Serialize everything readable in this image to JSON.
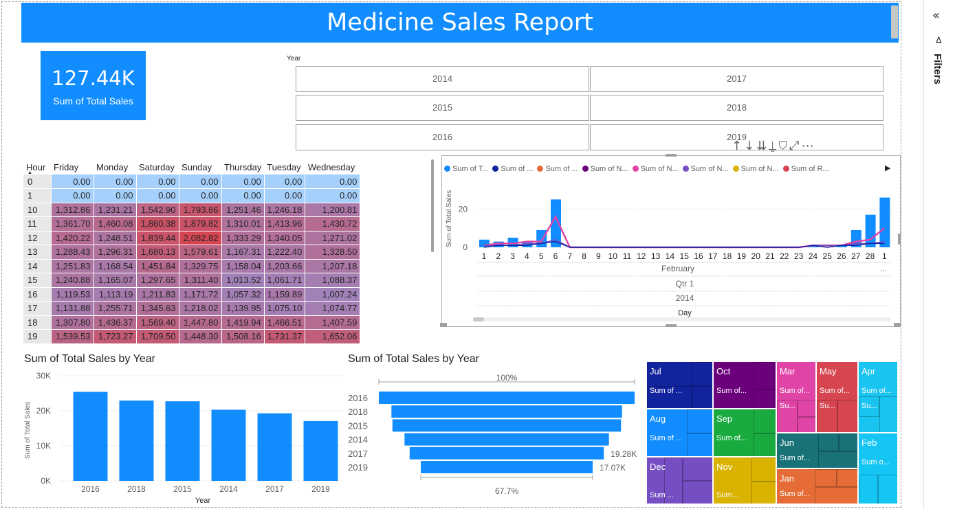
{
  "header": {
    "title": "Medicine Sales Report"
  },
  "card": {
    "value": "127.44K",
    "label": "Sum of Total Sales"
  },
  "slicer": {
    "title": "Year",
    "options": [
      "2014",
      "2017",
      "2015",
      "2018",
      "2016",
      "2019"
    ]
  },
  "matrix": {
    "row_header": "Hour",
    "columns": [
      "Friday",
      "Monday",
      "Saturday",
      "Sunday",
      "Thursday",
      "Tuesday",
      "Wednesday"
    ],
    "rows": [
      {
        "hour": "0",
        "values": [
          "0.00",
          "0.00",
          "0.00",
          "0.00",
          "0.00",
          "0.00",
          "0.00"
        ]
      },
      {
        "hour": "1",
        "values": [
          "0.00",
          "0.00",
          "0.00",
          "0.00",
          "0.00",
          "0.00",
          "0.00"
        ]
      },
      {
        "hour": "10",
        "values": [
          "1,312.86",
          "1,231.21",
          "1,542.90",
          "1,793.86",
          "1,251.46",
          "1,246.18",
          "1,200.81"
        ]
      },
      {
        "hour": "11",
        "values": [
          "1,361.70",
          "1,460.08",
          "1,860.38",
          "1,879.82",
          "1,310.01",
          "1,413.96",
          "1,430.72"
        ]
      },
      {
        "hour": "12",
        "values": [
          "1,420.22",
          "1,248.51",
          "1,839.44",
          "2,082.82",
          "1,333.29",
          "1,340.05",
          "1,271.02"
        ]
      },
      {
        "hour": "13",
        "values": [
          "1,288.43",
          "1,296.31",
          "1,680.13",
          "1,579.61",
          "1,167.31",
          "1,222.40",
          "1,328.50"
        ]
      },
      {
        "hour": "14",
        "values": [
          "1,251.83",
          "1,168.54",
          "1,451.84",
          "1,329.75",
          "1,158.04",
          "1,203.66",
          "1,207.18"
        ]
      },
      {
        "hour": "15",
        "values": [
          "1,240.88",
          "1,165.07",
          "1,297.65",
          "1,311.40",
          "1,013.52",
          "1,061.71",
          "1,088.37"
        ]
      },
      {
        "hour": "16",
        "values": [
          "1,119.53",
          "1,113.19",
          "1,211.83",
          "1,171.72",
          "1,057.32",
          "1,159.89",
          "1,007.24"
        ]
      },
      {
        "hour": "17",
        "values": [
          "1,131.88",
          "1,255.71",
          "1,345.63",
          "1,218.02",
          "1,139.95",
          "1,075.10",
          "1,074.77"
        ]
      },
      {
        "hour": "18",
        "values": [
          "1,307.80",
          "1,436.37",
          "1,569.40",
          "1,447.80",
          "1,419.94",
          "1,466.51",
          "1,407.59"
        ]
      },
      {
        "hour": "19",
        "values": [
          "1,539.53",
          "1,723.27",
          "1,709.50",
          "1,448.30",
          "1,508.16",
          "1,731.37",
          "1,652.06"
        ]
      }
    ]
  },
  "visual_toolbar": {
    "icons": [
      "drill-up-icon",
      "drill-down-icon",
      "expand-all-icon",
      "expand-hierarchy-icon",
      "filter-icon",
      "focus-mode-icon",
      "more-options-icon"
    ],
    "glyphs": "↑ ↓ ⇊ ⍊ ⛉ ⤢ ⋯"
  },
  "line_chart": {
    "legend": [
      {
        "label": "Sum of T...",
        "color": "#118dff"
      },
      {
        "label": "Sum of ...",
        "color": "#12239e"
      },
      {
        "label": "Sum of ...",
        "color": "#e66c37"
      },
      {
        "label": "Sum of N...",
        "color": "#6b007b"
      },
      {
        "label": "Sum of N...",
        "color": "#e044a7"
      },
      {
        "label": "Sum of N...",
        "color": "#744ec2"
      },
      {
        "label": "Sum of N...",
        "color": "#d9b300"
      },
      {
        "label": "Sum of R...",
        "color": "#d64550"
      }
    ],
    "ylabel": "Sum of Total Sales",
    "yticks": [
      "20",
      "0"
    ],
    "xticks": [
      "1",
      "2",
      "3",
      "4",
      "5",
      "6",
      "7",
      "8",
      "9",
      "10",
      "11",
      "12",
      "13",
      "14",
      "15",
      "16",
      "17",
      "18",
      "19",
      "20",
      "21",
      "22",
      "23",
      "24",
      "25",
      "26",
      "27",
      "28",
      "1"
    ],
    "hier": {
      "month": "February",
      "quarter": "Qtr 1",
      "year": "2014",
      "axis": "Day",
      "more": "..."
    }
  },
  "chart_data": [
    {
      "type": "bar",
      "title": "Sum of Total Sales by Year",
      "xlabel": "Year",
      "ylabel": "Sum of Total Sales",
      "categories": [
        "2016",
        "2018",
        "2015",
        "2014",
        "2017",
        "2019"
      ],
      "values": [
        25400,
        22900,
        22700,
        20300,
        19280,
        17070
      ],
      "ylim": [
        0,
        30000
      ],
      "yticks": [
        "30K",
        "20K",
        "10K",
        "0K"
      ],
      "color": "#118dff"
    },
    {
      "type": "bar",
      "subtype": "funnel",
      "title": "Sum of Total Sales by Year",
      "categories": [
        "2016",
        "2018",
        "2015",
        "2014",
        "2017",
        "2019"
      ],
      "values": [
        25400,
        22900,
        22700,
        20300,
        19280,
        17070
      ],
      "top_label": "100%",
      "bottom_label": "67.7%",
      "data_labels": [
        "",
        "",
        "",
        "",
        "19.28K",
        "17.07K"
      ],
      "color": "#118dff"
    },
    {
      "type": "line",
      "title": "",
      "x": [
        1,
        2,
        3,
        4,
        5,
        6,
        7,
        8,
        9,
        10,
        11,
        12,
        13,
        14,
        15,
        16,
        17,
        18,
        19,
        20,
        21,
        22,
        23,
        24,
        25,
        26,
        27,
        28,
        29
      ],
      "series": [
        {
          "values": [
            4,
            3,
            5,
            3,
            9,
            25,
            0,
            0,
            0,
            0,
            0,
            0,
            0,
            0,
            0,
            0,
            0,
            0,
            0,
            0,
            0,
            0,
            0,
            1,
            0,
            1,
            9,
            17,
            26
          ],
          "kind": "bar",
          "color": "#118dff"
        },
        {
          "values": [
            1,
            2,
            2,
            3,
            3,
            16,
            0,
            0,
            0,
            0,
            0,
            0,
            0,
            0,
            0,
            0,
            0,
            0,
            0,
            0,
            0,
            0,
            0,
            1,
            1,
            1,
            3,
            4,
            10
          ],
          "kind": "line",
          "color": "#e044a7"
        },
        {
          "values": [
            1,
            1,
            1,
            2,
            2,
            4,
            0,
            0,
            0,
            0,
            0,
            0,
            0,
            0,
            0,
            0,
            0,
            0,
            0,
            0,
            0,
            0,
            0,
            1,
            1,
            1,
            2,
            2,
            3
          ],
          "kind": "line",
          "color": "#744ec2"
        },
        {
          "values": [
            0,
            1,
            1,
            1,
            2,
            3,
            0,
            0,
            0,
            0,
            0,
            0,
            0,
            0,
            0,
            0,
            0,
            0,
            0,
            0,
            0,
            0,
            0,
            1,
            0,
            1,
            1,
            2,
            2
          ],
          "kind": "line",
          "color": "#12239e"
        }
      ],
      "ylim": [
        0,
        28
      ]
    },
    {
      "type": "heatmap",
      "subtype": "treemap",
      "items": [
        {
          "name": "Jul",
          "label": "Sum of ...",
          "color": "#12239e"
        },
        {
          "name": "Oct",
          "label": "Sum of...",
          "color": "#6b007b"
        },
        {
          "name": "Mar",
          "label": "Sum of...",
          "label2": "Su...",
          "color": "#e044a7"
        },
        {
          "name": "May",
          "label": "Sum of...",
          "label2": "Su...",
          "color": "#d64550"
        },
        {
          "name": "Apr",
          "label": "Sum of...",
          "label2": "Su...",
          "color": "#1ac4f0"
        },
        {
          "name": "Aug",
          "label": "Sum of ...",
          "color": "#118dff"
        },
        {
          "name": "Sep",
          "label": "Sum of...",
          "color": "#1aab40"
        },
        {
          "name": "Jun",
          "label": "Sum of...",
          "color": "#197278"
        },
        {
          "name": "Feb",
          "label": "Sum o...",
          "color": "#15c6f4"
        },
        {
          "name": "Dec",
          "label": "Sum ...",
          "color": "#744ec2"
        },
        {
          "name": "Nov",
          "label": "Sum...",
          "color": "#d9b300"
        },
        {
          "name": "Jan",
          "label": "Sum of...",
          "color": "#e66c37"
        }
      ]
    }
  ],
  "side_panel": {
    "label": "Filters"
  }
}
